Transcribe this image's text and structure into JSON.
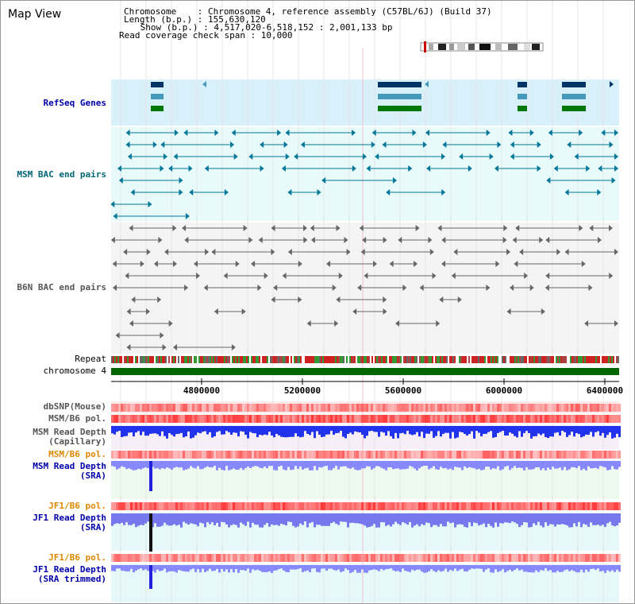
{
  "view_title": "Map View",
  "info": {
    "chromosome": "Chromosome    : Chromosome 4, reference assembly (C57BL/6J) (Build 37)",
    "length": "Length (b.p.) : 155,630,120",
    "show": " Show (b.p.) : 4,517,020-6,518,152 : 2,001,133 bp",
    "span": "Read coverage check span : 10,000"
  },
  "tracks": {
    "refseq": "RefSeq Genes",
    "msm_bac": "MSM BAC end pairs",
    "b6n_bac": "B6N BAC end pairs",
    "repeat": "Repeat",
    "chromosome": "chromosome 4",
    "dbsnp": "dbSNP(Mouse)",
    "msm_b6_pol_1": "MSM/B6 pol.",
    "msm_depth_cap": "MSM Read Depth\n(Capillary)",
    "msm_b6_pol_2": "MSM/B6 pol.",
    "msm_depth_sra": "MSM Read Depth\n(SRA)",
    "jf1_b6_pol_1": "JF1/B6 pol.",
    "jf1_depth_sra": "JF1 Read Depth\n(SRA)",
    "jf1_b6_pol_2": "JF1/B6 pol.",
    "jf1_depth_trim": "JF1 Read Depth\n(SRA trimmed)"
  },
  "axis": {
    "ticks": [
      "4800000",
      "5200000",
      "5600000",
      "6000000",
      "6400000"
    ]
  },
  "colors": {
    "blue_label": "#0000aa",
    "teal_label": "#006677",
    "gray_label": "#555555",
    "orange_label": "#dd8800",
    "black_label": "#000000",
    "gene_navy": "#003366",
    "gene_steel": "#4499bb",
    "gene_green": "#007700",
    "chrom_green": "#006600"
  }
}
